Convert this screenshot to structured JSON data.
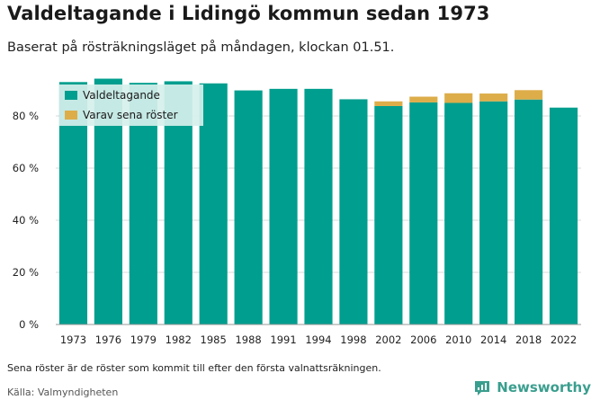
{
  "title": "Valdeltagande i Lidingö kommun sedan 1973",
  "subtitle": "Baserat på rösträkningsläget på måndagen, klockan 01.51.",
  "note": "Sena röster är de röster som kommit till efter den första valnattsräkningen.",
  "source": "Källa: Valmyndigheten",
  "brand": {
    "name": "Newsworthy",
    "icon": "newsworthy-logo-icon"
  },
  "colors": {
    "turnout": "#009e8e",
    "late": "#ddad4a",
    "grid": "#d9d9d9",
    "legend_bg": "#d6f0ec"
  },
  "chart_data": {
    "type": "bar",
    "stacked": true,
    "categories": [
      "1973",
      "1976",
      "1979",
      "1982",
      "1985",
      "1988",
      "1991",
      "1994",
      "1998",
      "2002",
      "2006",
      "2010",
      "2014",
      "2018",
      "2022"
    ],
    "series": [
      {
        "name": "Valdeltagande",
        "values": [
          93.0,
          94.3,
          92.7,
          93.3,
          92.5,
          89.8,
          90.4,
          90.4,
          86.4,
          83.8,
          85.2,
          85.0,
          85.6,
          86.3,
          83.2
        ]
      },
      {
        "name": "Varav sena röster",
        "values": [
          0,
          0,
          0,
          0,
          0,
          0,
          0,
          0,
          0,
          1.8,
          2.2,
          3.7,
          3.0,
          3.6,
          0
        ]
      }
    ],
    "ylim": [
      0,
      100
    ],
    "yticks": [
      0,
      20,
      40,
      60,
      80
    ],
    "ytick_labels": [
      "0 %",
      "20 %",
      "40 %",
      "60 %",
      "80 %"
    ],
    "grid": true,
    "legend_position": "top-left"
  }
}
